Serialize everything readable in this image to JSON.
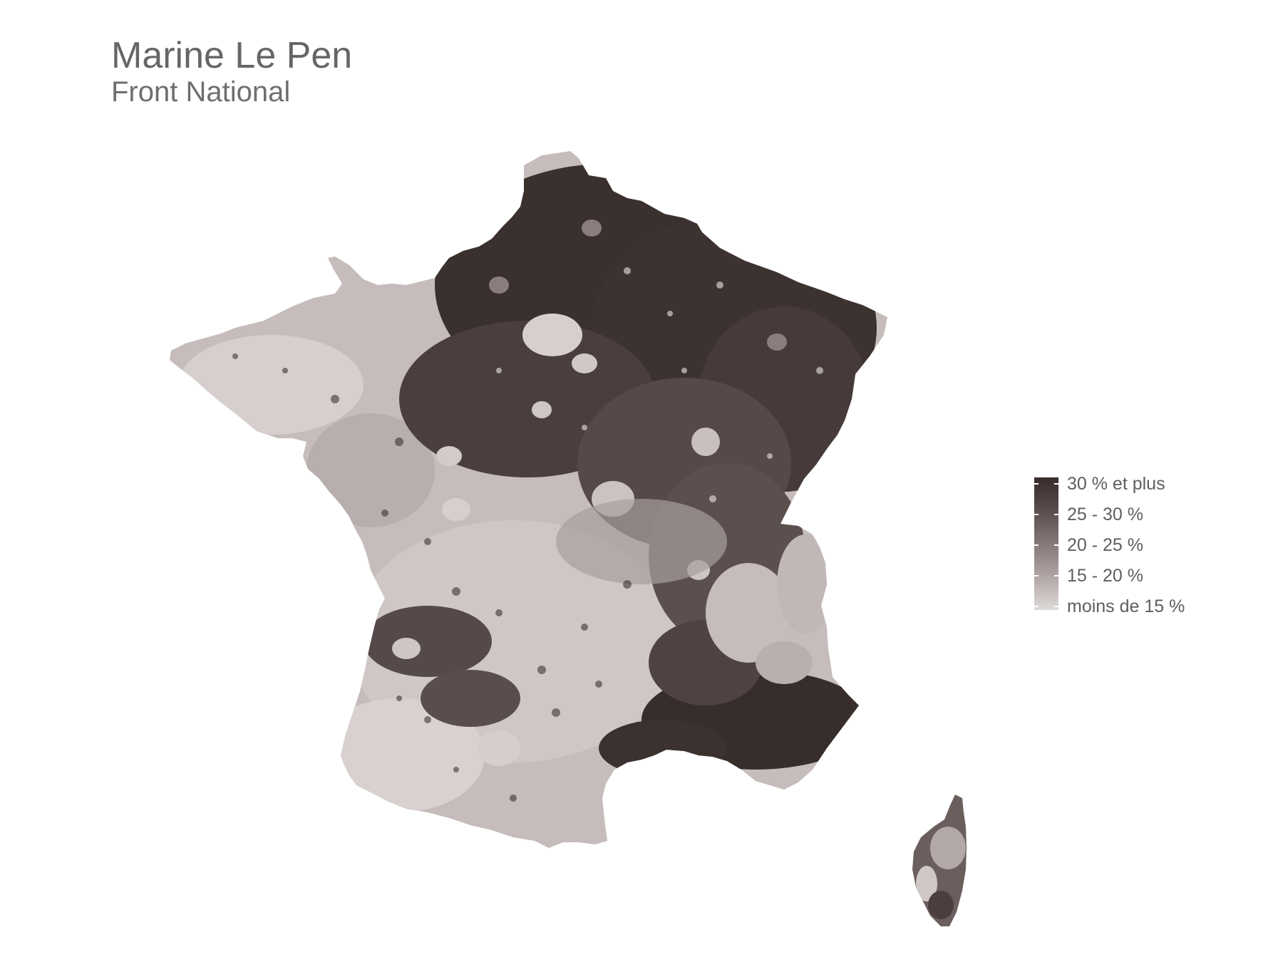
{
  "title": "Marine Le Pen",
  "subtitle": "Front National",
  "legend": {
    "items": [
      {
        "label": "30 % et plus",
        "color": "#3a2f2d"
      },
      {
        "label": "25 - 30 %",
        "color": "#5e5251"
      },
      {
        "label": "20 - 25 %",
        "color": "#857978"
      },
      {
        "label": "15 - 20 %",
        "color": "#b0a6a5"
      },
      {
        "label": "moins de 15 %",
        "color": "#ddd6d6"
      }
    ]
  },
  "colors": {
    "darkest": "#352b29",
    "dark": "#5a4e4d",
    "mid": "#8a7e7d",
    "light": "#b9afae",
    "lightest": "#e0dada"
  }
}
